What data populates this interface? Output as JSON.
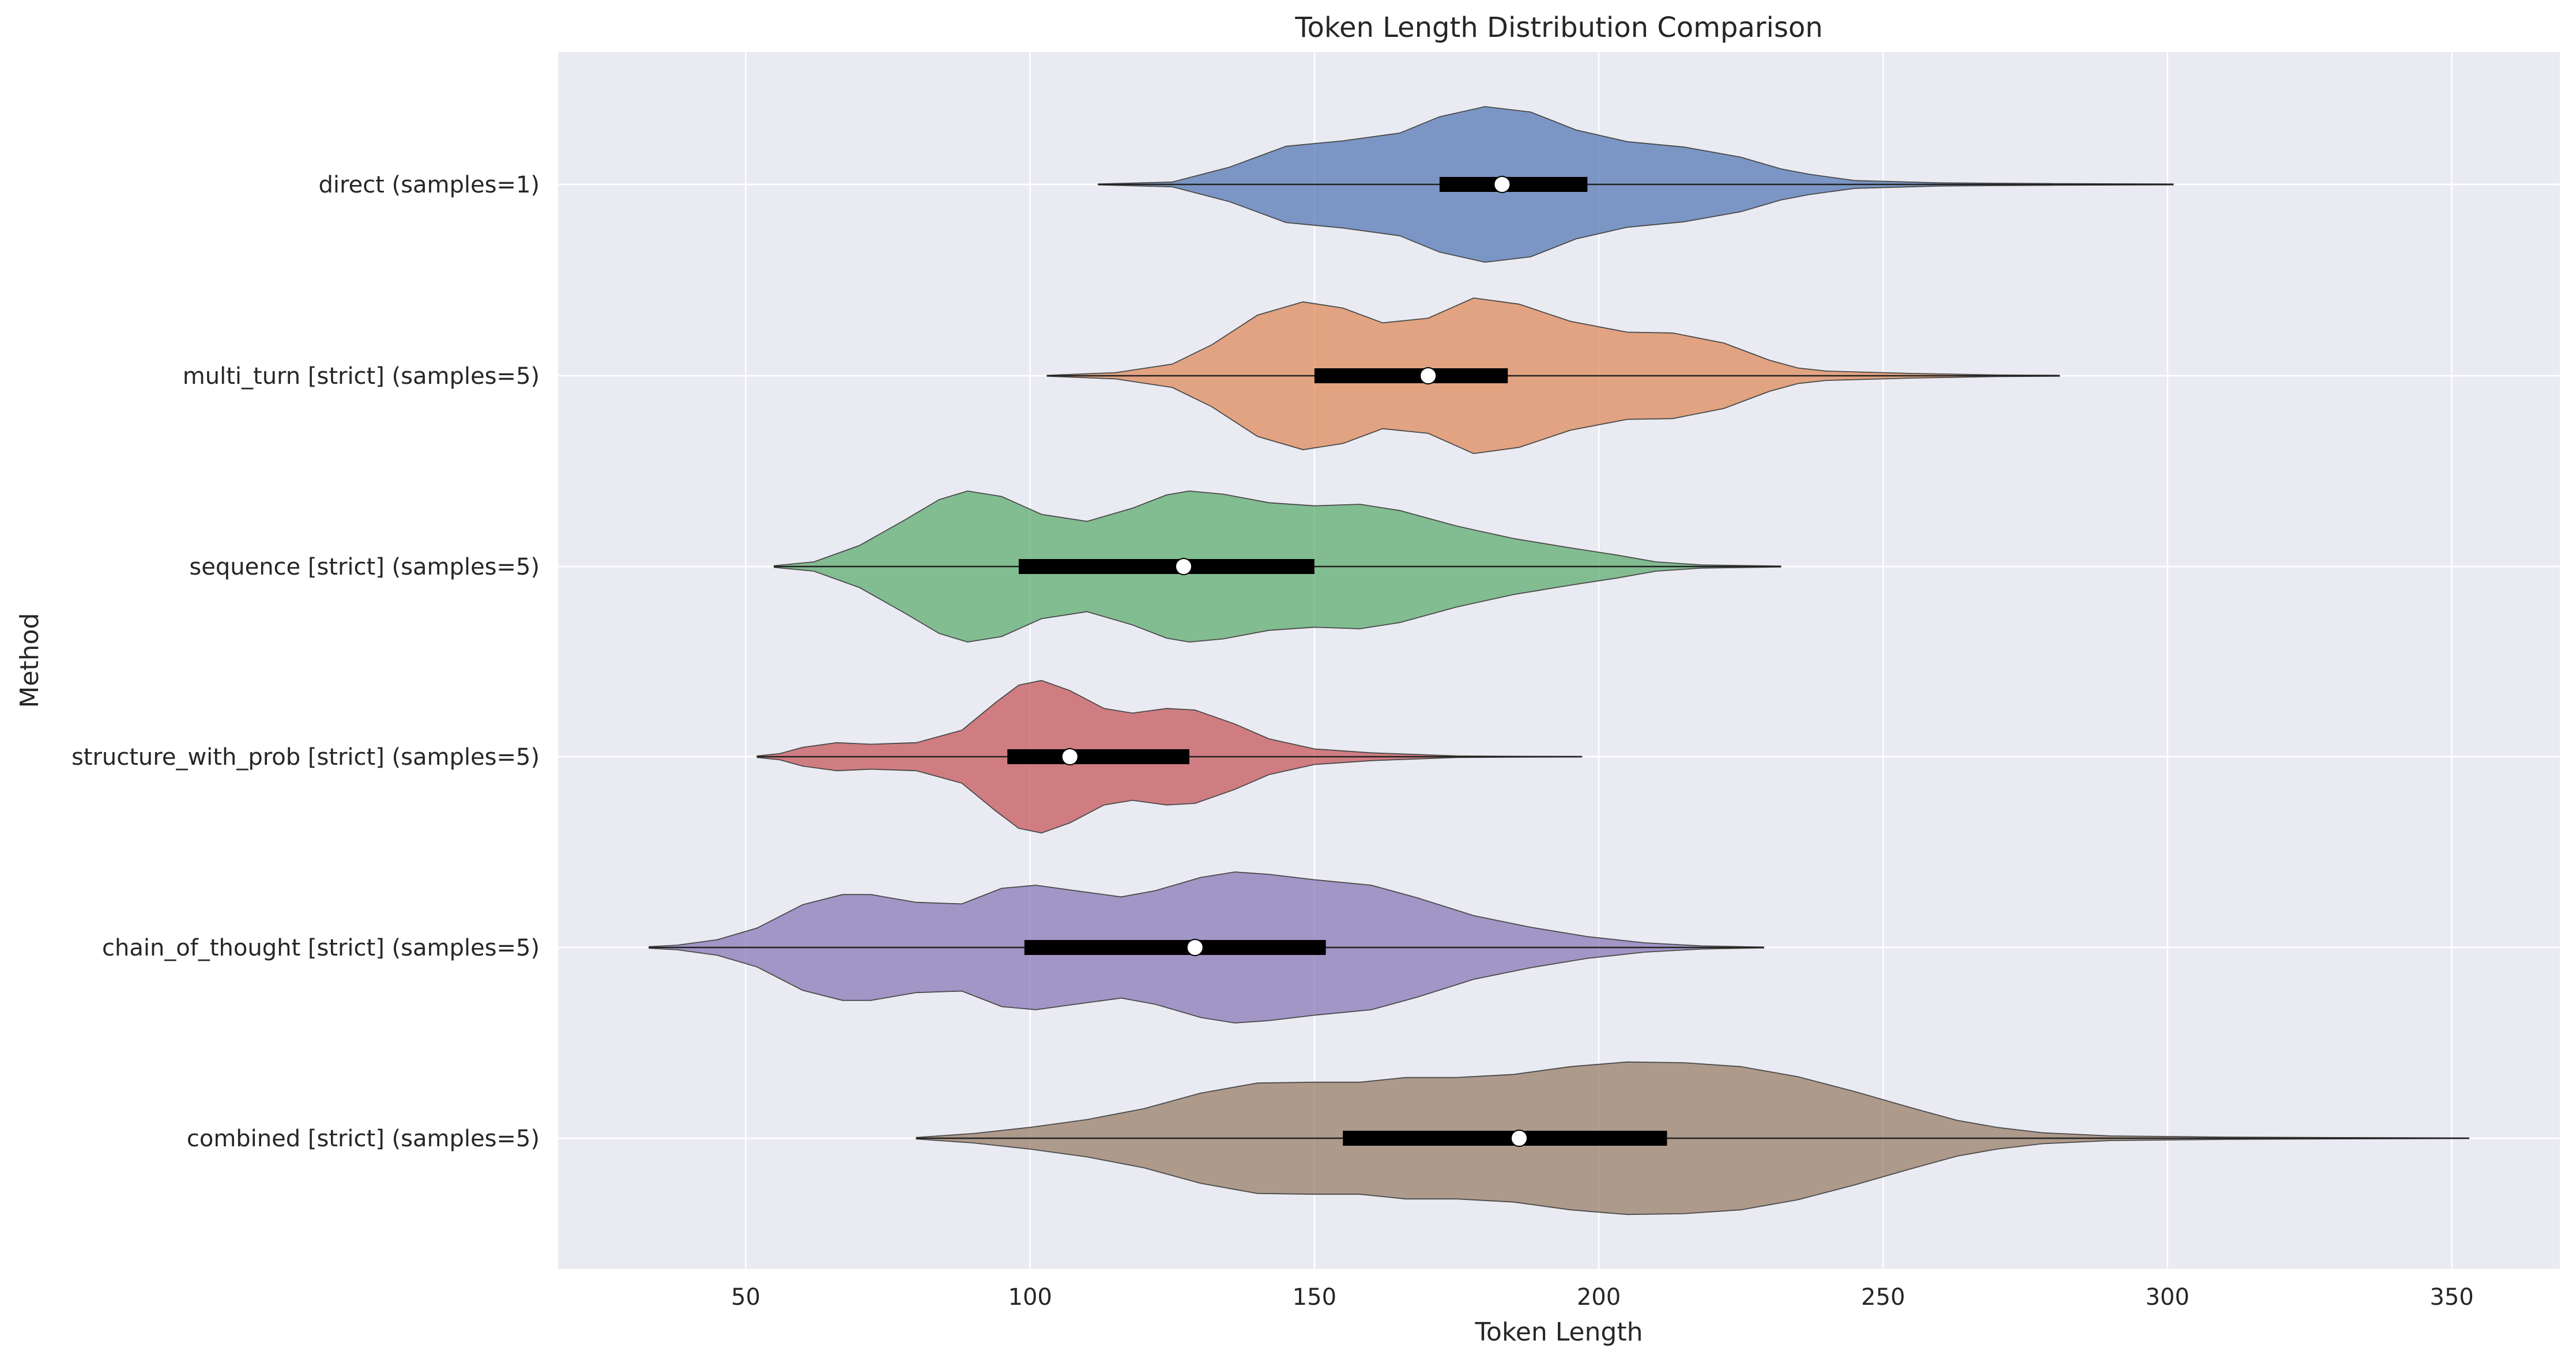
{
  "chart_data": {
    "type": "violin",
    "orientation": "horizontal",
    "title": "Token Length Distribution Comparison",
    "xlabel": "Token Length",
    "ylabel": "Method",
    "xlim": [
      17,
      369
    ],
    "xticks": [
      50,
      100,
      150,
      200,
      250,
      300,
      350
    ],
    "grid": true,
    "background": "#eaeaf2",
    "series": [
      {
        "name": "direct (samples=1)",
        "color": "#4c72b0",
        "min": 112,
        "q1": 172,
        "median": 183,
        "q3": 198,
        "max": 301,
        "density": [
          [
            112,
            0.005
          ],
          [
            125,
            0.03
          ],
          [
            135,
            0.22
          ],
          [
            145,
            0.49
          ],
          [
            155,
            0.56
          ],
          [
            165,
            0.66
          ],
          [
            172,
            0.87
          ],
          [
            180,
            1.0
          ],
          [
            188,
            0.93
          ],
          [
            196,
            0.7
          ],
          [
            205,
            0.55
          ],
          [
            215,
            0.48
          ],
          [
            225,
            0.35
          ],
          [
            232,
            0.2
          ],
          [
            237,
            0.13
          ],
          [
            245,
            0.05
          ],
          [
            260,
            0.02
          ],
          [
            280,
            0.01
          ],
          [
            301,
            0.005
          ]
        ]
      },
      {
        "name": "multi_turn [strict] (samples=5)",
        "color": "#dd8452",
        "min": 103,
        "q1": 150,
        "median": 170,
        "q3": 184,
        "max": 281,
        "density": [
          [
            103,
            0.005
          ],
          [
            115,
            0.04
          ],
          [
            125,
            0.15
          ],
          [
            132,
            0.4
          ],
          [
            140,
            0.78
          ],
          [
            148,
            0.95
          ],
          [
            155,
            0.87
          ],
          [
            162,
            0.68
          ],
          [
            170,
            0.74
          ],
          [
            178,
            1.0
          ],
          [
            186,
            0.92
          ],
          [
            195,
            0.7
          ],
          [
            205,
            0.56
          ],
          [
            213,
            0.55
          ],
          [
            222,
            0.42
          ],
          [
            230,
            0.2
          ],
          [
            235,
            0.1
          ],
          [
            240,
            0.06
          ],
          [
            255,
            0.03
          ],
          [
            270,
            0.01
          ],
          [
            281,
            0.005
          ]
        ]
      },
      {
        "name": "sequence [strict] (samples=5)",
        "color": "#55a868",
        "min": 55,
        "q1": 98,
        "median": 127,
        "q3": 150,
        "max": 232,
        "density": [
          [
            55,
            0.01
          ],
          [
            62,
            0.06
          ],
          [
            70,
            0.27
          ],
          [
            78,
            0.6
          ],
          [
            84,
            0.86
          ],
          [
            89,
            0.97
          ],
          [
            95,
            0.9
          ],
          [
            102,
            0.67
          ],
          [
            110,
            0.58
          ],
          [
            118,
            0.75
          ],
          [
            124,
            0.92
          ],
          [
            128,
            0.97
          ],
          [
            134,
            0.93
          ],
          [
            142,
            0.82
          ],
          [
            150,
            0.78
          ],
          [
            158,
            0.8
          ],
          [
            165,
            0.72
          ],
          [
            175,
            0.52
          ],
          [
            185,
            0.36
          ],
          [
            195,
            0.24
          ],
          [
            203,
            0.15
          ],
          [
            210,
            0.06
          ],
          [
            218,
            0.02
          ],
          [
            228,
            0.01
          ],
          [
            232,
            0.005
          ]
        ]
      },
      {
        "name": "structure_with_prob [strict] (samples=5)",
        "color": "#c44e52",
        "min": 52,
        "q1": 96,
        "median": 107,
        "q3": 128,
        "max": 197,
        "density": [
          [
            52,
            0.01
          ],
          [
            56,
            0.04
          ],
          [
            60,
            0.12
          ],
          [
            66,
            0.18
          ],
          [
            72,
            0.16
          ],
          [
            80,
            0.18
          ],
          [
            88,
            0.34
          ],
          [
            94,
            0.7
          ],
          [
            98,
            0.92
          ],
          [
            102,
            0.98
          ],
          [
            107,
            0.85
          ],
          [
            113,
            0.62
          ],
          [
            118,
            0.56
          ],
          [
            124,
            0.62
          ],
          [
            129,
            0.6
          ],
          [
            136,
            0.42
          ],
          [
            142,
            0.23
          ],
          [
            150,
            0.1
          ],
          [
            160,
            0.05
          ],
          [
            175,
            0.01
          ],
          [
            185,
            0.005
          ],
          [
            197,
            0.002
          ]
        ]
      },
      {
        "name": "chain_of_thought [strict] (samples=5)",
        "color": "#8172b3",
        "min": 33,
        "q1": 99,
        "median": 129,
        "q3": 152,
        "max": 229,
        "density": [
          [
            33,
            0.01
          ],
          [
            38,
            0.03
          ],
          [
            45,
            0.1
          ],
          [
            52,
            0.25
          ],
          [
            60,
            0.55
          ],
          [
            67,
            0.68
          ],
          [
            72,
            0.68
          ],
          [
            80,
            0.58
          ],
          [
            88,
            0.56
          ],
          [
            95,
            0.76
          ],
          [
            101,
            0.8
          ],
          [
            108,
            0.73
          ],
          [
            116,
            0.65
          ],
          [
            122,
            0.73
          ],
          [
            130,
            0.9
          ],
          [
            136,
            0.97
          ],
          [
            142,
            0.94
          ],
          [
            150,
            0.87
          ],
          [
            160,
            0.8
          ],
          [
            168,
            0.64
          ],
          [
            178,
            0.41
          ],
          [
            188,
            0.26
          ],
          [
            198,
            0.14
          ],
          [
            208,
            0.06
          ],
          [
            218,
            0.02
          ],
          [
            229,
            0.005
          ]
        ]
      },
      {
        "name": "combined [strict] (samples=5)",
        "color": "#937860",
        "min": 80,
        "q1": 155,
        "median": 186,
        "q3": 212,
        "max": 353,
        "density": [
          [
            80,
            0.01
          ],
          [
            90,
            0.06
          ],
          [
            100,
            0.14
          ],
          [
            110,
            0.24
          ],
          [
            120,
            0.38
          ],
          [
            130,
            0.58
          ],
          [
            140,
            0.71
          ],
          [
            150,
            0.72
          ],
          [
            158,
            0.72
          ],
          [
            166,
            0.78
          ],
          [
            175,
            0.78
          ],
          [
            185,
            0.82
          ],
          [
            195,
            0.92
          ],
          [
            205,
            0.98
          ],
          [
            215,
            0.97
          ],
          [
            225,
            0.92
          ],
          [
            235,
            0.79
          ],
          [
            245,
            0.6
          ],
          [
            255,
            0.39
          ],
          [
            263,
            0.23
          ],
          [
            270,
            0.14
          ],
          [
            278,
            0.07
          ],
          [
            290,
            0.03
          ],
          [
            310,
            0.015
          ],
          [
            330,
            0.008
          ],
          [
            353,
            0.003
          ]
        ]
      }
    ]
  }
}
